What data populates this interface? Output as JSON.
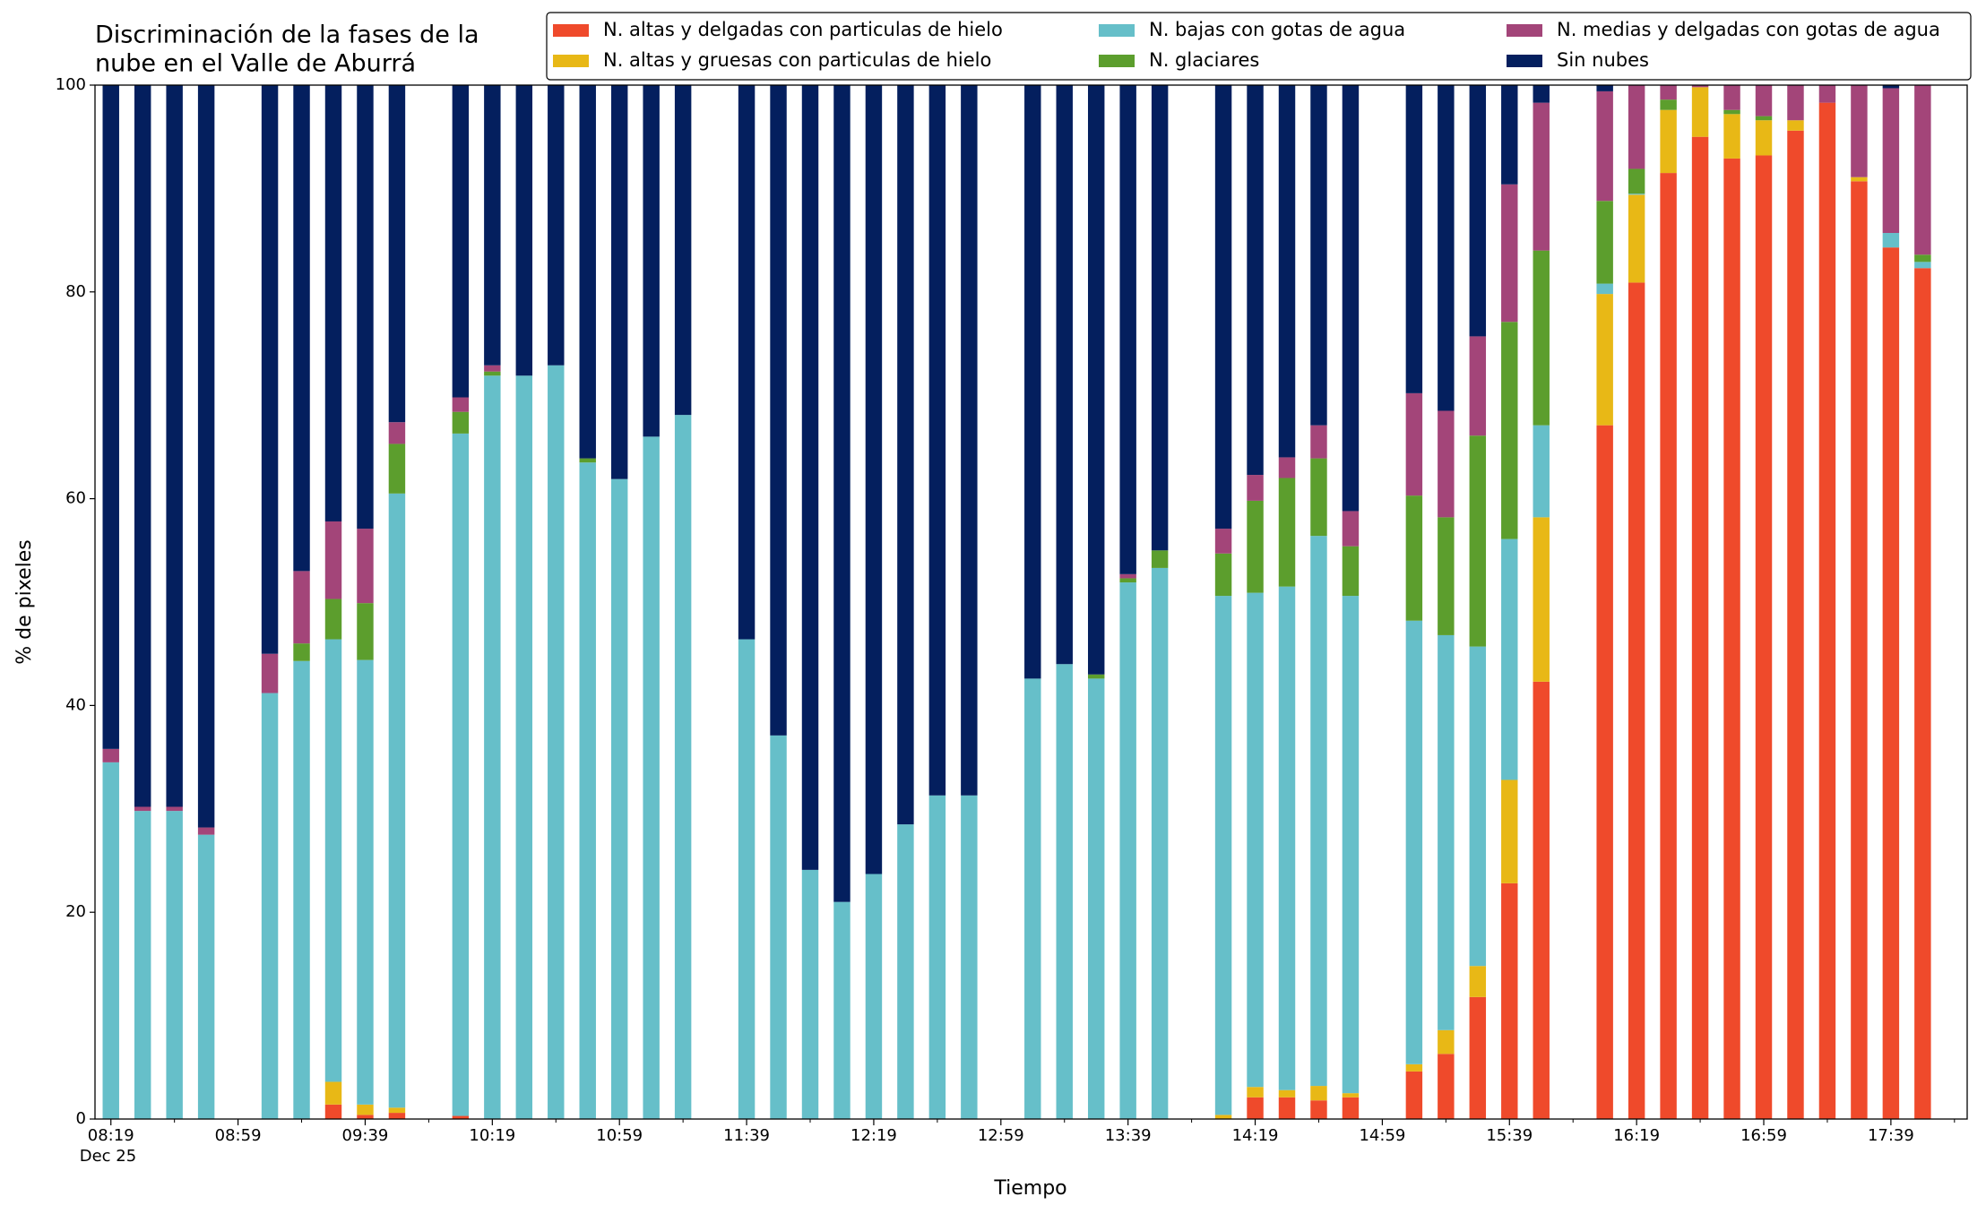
{
  "chart_data": {
    "type": "stacked_bar",
    "title": [
      "Discriminación de la fases de la",
      "nube en el Valle de Aburrá"
    ],
    "xlabel": "Tiempo",
    "ylabel": "% de pixeles",
    "x_date_label": "Dec 25",
    "x": [
      "08:19",
      "08:29",
      "08:39",
      "08:49",
      "09:09",
      "09:19",
      "09:29",
      "09:39",
      "09:49",
      "10:09",
      "10:19",
      "10:29",
      "10:39",
      "10:49",
      "10:59",
      "11:09",
      "11:19",
      "11:39",
      "11:49",
      "11:59",
      "12:09",
      "12:19",
      "12:29",
      "12:39",
      "12:49",
      "13:09",
      "13:19",
      "13:29",
      "13:39",
      "13:49",
      "14:09",
      "14:19",
      "14:29",
      "14:39",
      "14:49",
      "15:09",
      "15:19",
      "15:29",
      "15:39",
      "15:49",
      "16:09",
      "16:19",
      "16:29",
      "16:39",
      "16:49",
      "16:59",
      "17:09",
      "17:19",
      "17:29",
      "17:39",
      "17:49"
    ],
    "xlim": [
      "08:14",
      "18:03"
    ],
    "xticks": [
      "08:19",
      "08:59",
      "09:39",
      "10:19",
      "10:59",
      "11:39",
      "12:19",
      "12:59",
      "13:39",
      "14:19",
      "14:59",
      "15:39",
      "16:19",
      "16:59",
      "17:39"
    ],
    "xminor_ticks": [
      "08:39",
      "09:19",
      "09:59",
      "10:39",
      "11:19",
      "11:59",
      "12:39",
      "13:19",
      "13:59",
      "14:39",
      "15:19",
      "15:59",
      "16:39",
      "17:19",
      "17:59"
    ],
    "ylim": [
      0,
      100
    ],
    "yticks": [
      0,
      20,
      40,
      60,
      80,
      100
    ],
    "grid": false,
    "legend": "upper right",
    "series": [
      {
        "name": "N. altas y delgadas con particulas de hielo",
        "color": "#ef4a2b",
        "values": [
          0,
          0,
          0,
          0,
          0,
          0,
          1.4,
          0.4,
          0.6,
          0.3,
          0,
          0,
          0,
          0,
          0,
          0,
          0,
          0,
          0,
          0,
          0,
          0,
          0,
          0,
          0,
          0,
          0,
          0,
          0,
          0,
          0,
          2.1,
          2.1,
          1.8,
          2.1,
          4.6,
          6.3,
          11.8,
          22.8,
          42.3,
          67.1,
          80.9,
          91.5,
          95,
          92.9,
          93.2,
          95.6,
          98.3,
          90.7,
          84.3,
          82.3
        ]
      },
      {
        "name": "N. altas y gruesas con particulas de hielo",
        "color": "#e8b816",
        "values": [
          0,
          0,
          0,
          0,
          0,
          0,
          2.2,
          1.0,
          0.5,
          0,
          0,
          0,
          0,
          0,
          0,
          0,
          0,
          0,
          0,
          0,
          0,
          0,
          0,
          0,
          0,
          0,
          0,
          0,
          0,
          0,
          0.4,
          1.0,
          0.7,
          1.4,
          0.4,
          0.7,
          2.3,
          3.0,
          10,
          15.9,
          12.7,
          8.5,
          6.1,
          4.8,
          4.3,
          3.4,
          1.0,
          0,
          0.4,
          0,
          0
        ]
      },
      {
        "name": "N. bajas con gotas de agua",
        "color": "#66bfc9",
        "values": [
          34.5,
          29.8,
          29.8,
          27.5,
          41.2,
          44.3,
          42.8,
          43,
          59.4,
          66,
          71.9,
          71.9,
          72.9,
          63.5,
          61.9,
          66,
          68.1,
          46.4,
          37.1,
          24.1,
          21,
          23.7,
          28.5,
          31.3,
          31.3,
          42.6,
          44,
          42.6,
          51.9,
          53.3,
          50.2,
          47.8,
          48.7,
          53.2,
          48.1,
          42.9,
          38.2,
          30.9,
          23.3,
          8.9,
          1.0,
          0.1,
          0,
          0,
          0,
          0,
          0,
          0,
          0,
          1.4,
          0.6
        ]
      },
      {
        "name": "N. glaciares",
        "color": "#5c9e2d",
        "values": [
          0,
          0,
          0,
          0,
          0,
          1.7,
          3.9,
          5.5,
          4.8,
          2.1,
          0.4,
          0,
          0,
          0.4,
          0,
          0,
          0,
          0,
          0,
          0,
          0,
          0,
          0,
          0,
          0,
          0,
          0,
          0.4,
          0.4,
          1.7,
          4.1,
          8.9,
          10.5,
          7.5,
          4.8,
          12.1,
          11.4,
          20.4,
          21,
          16.9,
          8,
          2.4,
          1.0,
          0,
          0.4,
          0.4,
          0,
          0,
          0,
          0,
          0.7
        ]
      },
      {
        "name": "N. medias y delgadas con gotas de agua",
        "color": "#a34579",
        "values": [
          1.3,
          0.4,
          0.4,
          0.7,
          3.8,
          7,
          7.5,
          7.2,
          2.1,
          1.4,
          0.6,
          0,
          0,
          0,
          0,
          0,
          0,
          0,
          0,
          0,
          0,
          0,
          0,
          0,
          0,
          0,
          0,
          0,
          0.4,
          0,
          2.4,
          2.5,
          2,
          3.2,
          3.4,
          9.9,
          10.3,
          9.6,
          13.3,
          14.3,
          10.6,
          8.1,
          1.4,
          0.2,
          2.4,
          3,
          3.4,
          1.7,
          8.9,
          14,
          16.4
        ]
      },
      {
        "name": "Sin nubes",
        "color": "#041f5e",
        "values": [
          64.2,
          69.8,
          69.8,
          71.8,
          55,
          47,
          42.2,
          42.9,
          32.6,
          30.2,
          27.1,
          28.1,
          27.1,
          36.1,
          38.1,
          34,
          31.9,
          53.6,
          62.9,
          75.9,
          79,
          76.3,
          71.5,
          68.7,
          68.7,
          57.4,
          56,
          57,
          47.3,
          45,
          42.9,
          37.7,
          36,
          32.9,
          41.2,
          29.8,
          31.5,
          24.3,
          9.6,
          1.7,
          0.6,
          0,
          0,
          0,
          0,
          0,
          0,
          0,
          0,
          0.3,
          0
        ]
      }
    ]
  }
}
